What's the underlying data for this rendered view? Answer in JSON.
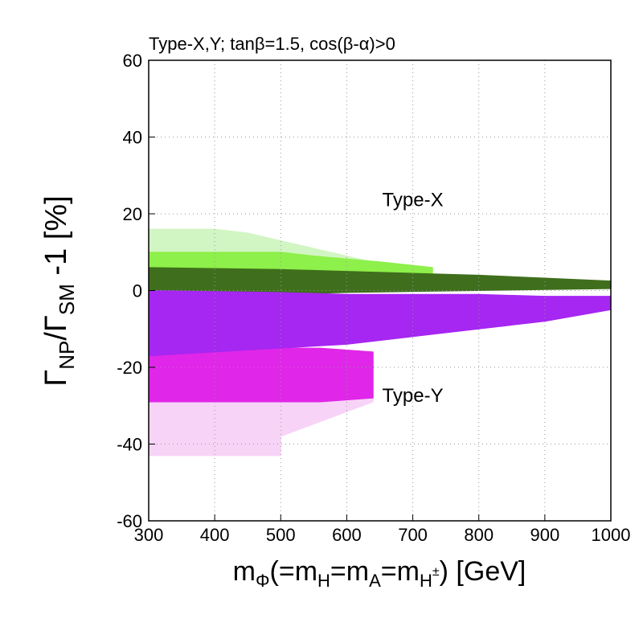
{
  "chart_data": {
    "type": "range-area",
    "title": "Type-X,Y; tanβ=1.5, cos(β-α)>0",
    "xlabel": [
      "m",
      "Φ",
      "(=m",
      "H",
      "=m",
      "A",
      "=m",
      "H",
      "±",
      ") [GeV]"
    ],
    "ylabel": [
      "Γ",
      "NP",
      "/Γ",
      "SM",
      " -1 [%]"
    ],
    "xlim": [
      300,
      1000
    ],
    "xticks": [
      300,
      400,
      500,
      600,
      700,
      800,
      900,
      1000
    ],
    "ylim": [
      -60,
      60
    ],
    "yticks": [
      -60,
      -40,
      -20,
      0,
      20,
      40,
      60
    ],
    "grid": true,
    "annotations": [
      {
        "text": "Type-X",
        "x": 700,
        "y": 22,
        "color": "#88ee44"
      },
      {
        "text": "Type-Y",
        "x": 700,
        "y": -29,
        "color": "#e040e0"
      }
    ],
    "series": [
      {
        "color": "#d2f5c4",
        "x": [
          300,
          400,
          450,
          500,
          550,
          600,
          650
        ],
        "high": [
          16,
          16,
          15,
          13,
          11,
          9,
          7
        ],
        "low": [
          6,
          6,
          6,
          6,
          6,
          6,
          6
        ]
      },
      {
        "color": "#8ef04a",
        "x": [
          300,
          400,
          500,
          550,
          650,
          730
        ],
        "high": [
          10,
          10,
          10,
          9,
          7.5,
          6
        ],
        "low": [
          -1,
          -1,
          -1,
          0,
          0,
          0
        ]
      },
      {
        "color": "#3f6f1c",
        "x": [
          300,
          500,
          600,
          800,
          1000
        ],
        "high": [
          6,
          5.5,
          5,
          4,
          2.5
        ],
        "low": [
          -1,
          -1,
          -0.5,
          0,
          0.5
        ]
      },
      {
        "color": "#f7d4f7",
        "x": [
          300,
          500,
          500,
          640
        ],
        "high": [
          -29,
          -29,
          -28,
          -28
        ],
        "low": [
          -43,
          -43,
          -38,
          -29
        ]
      },
      {
        "color": "#e026e8",
        "x": [
          300,
          500,
          500,
          560,
          640
        ],
        "high": [
          -14,
          -14,
          -15,
          -15,
          -16
        ],
        "low": [
          -29,
          -29,
          -29,
          -29,
          -28
        ]
      },
      {
        "color": "#a626f2",
        "x": [
          300,
          500,
          600,
          700,
          800,
          900,
          1000
        ],
        "high": [
          0,
          -0.5,
          -1,
          -1,
          -1,
          -1.5,
          -1.5
        ],
        "low": [
          -17,
          -15,
          -14,
          -12,
          -10,
          -8,
          -5
        ]
      }
    ]
  }
}
